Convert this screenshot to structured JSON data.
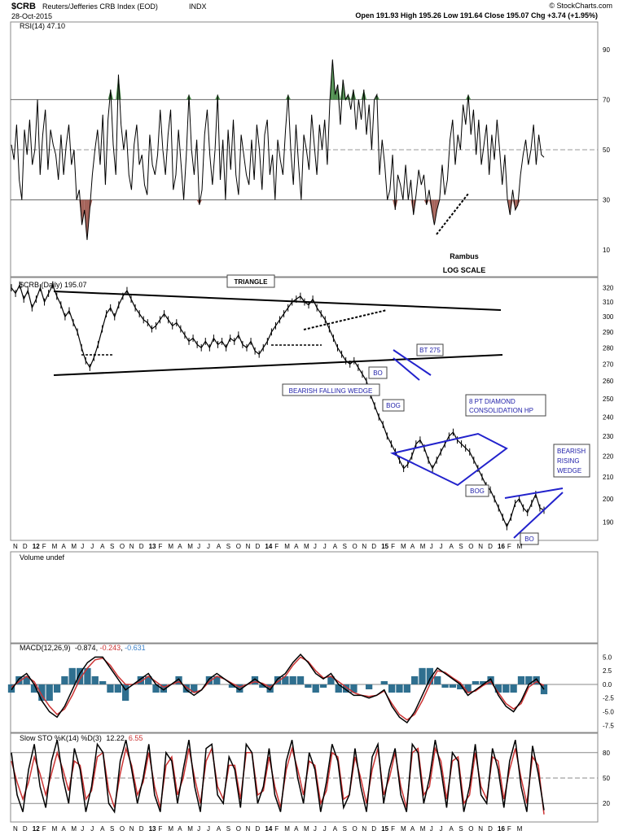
{
  "header": {
    "symbol": "$CRB",
    "name": "Reuters/Jefferies CRB Index (EOD)",
    "exchange": "INDX",
    "date": "28-Oct-2015",
    "ohlc": "Open 191.93  High 195.26  Low 191.64  Close 195.07  Chg +3.74 (+1.95%)",
    "copyright": "© StockCharts.com"
  },
  "chart_data": [
    {
      "type": "line",
      "title": "RSI(14) 47.10",
      "ylim": [
        0,
        100
      ],
      "yticks": [
        10,
        30,
        50,
        70,
        90
      ],
      "reference_lines": [
        30,
        50,
        70
      ],
      "annotations": [
        "Rambus",
        "LOG SCALE"
      ],
      "series": [
        {
          "values": [
            52,
            46,
            60,
            38,
            30,
            58,
            48,
            62,
            44,
            50,
            70,
            40,
            56,
            66,
            42,
            58,
            52,
            48,
            38,
            56,
            40,
            52,
            60,
            44,
            50,
            30,
            34,
            20,
            26,
            14,
            26,
            40,
            50,
            58,
            44,
            64,
            36,
            62,
            74,
            52,
            40,
            80,
            60,
            50,
            58,
            40,
            34,
            52,
            60,
            44,
            48,
            36,
            32,
            56,
            44,
            40,
            48,
            66,
            50,
            40,
            56,
            66,
            34,
            40,
            58,
            44,
            30,
            48,
            72,
            50,
            40,
            54,
            28,
            34,
            56,
            66,
            48,
            36,
            50,
            72,
            38,
            54,
            30,
            58,
            42,
            62,
            40,
            32,
            56,
            48,
            40,
            36,
            54,
            38,
            60,
            50,
            34,
            56,
            62,
            40,
            48,
            30,
            54,
            46,
            40,
            58,
            72,
            50,
            36,
            60,
            44,
            30,
            56,
            50,
            42,
            64,
            52,
            40,
            60,
            50,
            62,
            44,
            70,
            86,
            72,
            76,
            60,
            78,
            70,
            72,
            66,
            74,
            58,
            70,
            62,
            74,
            56,
            68,
            50,
            70,
            72,
            40,
            54,
            44,
            30,
            34,
            48,
            26,
            40,
            36,
            30,
            44,
            30,
            38,
            24,
            32,
            42,
            36,
            40,
            28,
            34,
            26,
            20,
            26,
            30,
            44,
            32,
            38,
            54,
            62,
            44,
            56,
            50,
            68,
            60,
            72,
            56,
            66,
            48,
            62,
            44,
            52,
            60,
            40,
            56,
            46,
            62,
            50,
            36,
            48,
            30,
            24,
            34,
            26,
            28,
            40,
            48,
            54,
            44,
            50,
            60,
            44,
            56,
            48,
            47
          ]
        }
      ]
    },
    {
      "type": "line",
      "title": "$CRB (Daily) 195.07",
      "scale": "log",
      "ylim": [
        183,
        325
      ],
      "yticks": [
        190,
        200,
        210,
        220,
        230,
        240,
        250,
        260,
        270,
        280,
        290,
        300,
        310,
        320
      ],
      "xticks": [
        "N",
        "D",
        "12",
        "F",
        "M",
        "A",
        "M",
        "J",
        "J",
        "A",
        "S",
        "O",
        "N",
        "D",
        "13",
        "F",
        "M",
        "A",
        "M",
        "J",
        "J",
        "A",
        "S",
        "O",
        "N",
        "D",
        "14",
        "F",
        "M",
        "A",
        "M",
        "J",
        "J",
        "A",
        "S",
        "O",
        "N",
        "D",
        "15",
        "F",
        "M",
        "A",
        "M",
        "J",
        "J",
        "A",
        "S",
        "O",
        "N",
        "D",
        "16",
        "F",
        "M"
      ],
      "annotations": [
        "TRIANGLE",
        "BT 275",
        "BO",
        "BEARISH FALLING WEDGE",
        "BOG",
        "8 PT DIAMOND",
        "CONSOLIDATION HP",
        "BOG",
        "BEARISH",
        "RISING",
        "WEDGE",
        "BO"
      ],
      "series": [
        {
          "values": [
            320,
            316,
            322,
            312,
            318,
            306,
            312,
            320,
            310,
            316,
            322,
            314,
            308,
            300,
            304,
            296,
            290,
            280,
            272,
            268,
            274,
            282,
            292,
            302,
            306,
            300,
            308,
            314,
            318,
            312,
            306,
            302,
            298,
            296,
            292,
            294,
            298,
            302,
            298,
            294,
            296,
            292,
            288,
            284,
            286,
            282,
            280,
            284,
            280,
            286,
            282,
            284,
            280,
            286,
            284,
            288,
            282,
            280,
            284,
            278,
            276,
            280,
            284,
            290,
            294,
            298,
            302,
            306,
            310,
            312,
            314,
            310,
            308,
            312,
            306,
            302,
            298,
            292,
            286,
            280,
            276,
            272,
            270,
            272,
            268,
            264,
            260,
            252,
            246,
            240,
            236,
            230,
            226,
            222,
            218,
            214,
            216,
            220,
            226,
            228,
            224,
            218,
            214,
            218,
            222,
            226,
            230,
            232,
            228,
            226,
            224,
            222,
            218,
            214,
            210,
            206,
            204,
            200,
            196,
            192,
            188,
            192,
            198,
            200,
            196,
            194,
            198,
            202,
            196,
            195
          ]
        }
      ]
    },
    {
      "type": "bar",
      "title": "Volume undef",
      "series": []
    },
    {
      "type": "line",
      "title": "MACD(12,26,9)",
      "ylim": [
        -8.5,
        7
      ],
      "yticks": [
        -7.5,
        -5.0,
        -2.5,
        0.0,
        2.5,
        5.0
      ],
      "legend": [
        {
          "label": "-0.874",
          "color": "#000000"
        },
        {
          "label": "-0.243",
          "color": "#cc3333"
        },
        {
          "label": "-0.631",
          "color": "#3a80c8"
        }
      ],
      "series": [
        {
          "values": [
            -1,
            1,
            2,
            0,
            -3,
            -5,
            -6,
            -4,
            -1,
            2,
            4,
            5,
            5,
            3,
            1,
            -1,
            0,
            1,
            2,
            0,
            -1,
            0,
            1,
            -1,
            -2,
            -1,
            1,
            2,
            1,
            0,
            -1,
            0,
            1,
            0,
            -1,
            1,
            2,
            4,
            5.5,
            4,
            2,
            1,
            2,
            0,
            -1,
            -2,
            -2,
            -2.5,
            -2,
            -1,
            -4,
            -6,
            -7,
            -5,
            -2,
            1,
            3,
            2,
            1,
            0,
            -2,
            -1,
            0,
            1,
            -2,
            -4,
            -5,
            -3,
            0,
            1,
            -0.9
          ]
        },
        {
          "values": [
            -0.5,
            0.5,
            1.5,
            0.5,
            -2,
            -4,
            -5.5,
            -4.5,
            -2,
            1,
            3,
            4.5,
            4.8,
            3.5,
            1.5,
            0,
            0,
            0.5,
            1.5,
            0.5,
            -0.5,
            0,
            0.5,
            -0.5,
            -1.5,
            -1,
            0.5,
            1.5,
            1,
            0.2,
            -0.5,
            0,
            0.5,
            0.2,
            -0.5,
            0.5,
            1.5,
            3.5,
            5,
            4.2,
            2.5,
            1.2,
            1.5,
            0.5,
            -0.5,
            -1.5,
            -2,
            -2.2,
            -2,
            -1.2,
            -3.5,
            -5.5,
            -6.5,
            -5.5,
            -3,
            0,
            2.5,
            2.2,
            1.2,
            0.3,
            -1.5,
            -1.2,
            -0.2,
            0.5,
            -1.5,
            -3.5,
            -4.5,
            -3.5,
            -0.5,
            0.5,
            -0.2
          ]
        },
        {
          "values": [
            -0.5,
            0.5,
            0.5,
            -0.5,
            -1,
            -1,
            -0.5,
            0.5,
            1,
            1,
            1,
            0.5,
            0.2,
            -0.5,
            -0.5,
            -1,
            0,
            0.5,
            0.5,
            -0.5,
            -0.5,
            0,
            0.5,
            -0.5,
            -0.5,
            0,
            0.5,
            0.5,
            0,
            -0.2,
            -0.5,
            0,
            0.5,
            -0.2,
            -0.5,
            0.5,
            0.5,
            0.5,
            0.5,
            -0.2,
            -0.5,
            -0.2,
            0.5,
            -0.5,
            -0.5,
            -0.5,
            0,
            -0.3,
            0,
            0.2,
            -0.5,
            -0.5,
            -0.5,
            0.5,
            1,
            1,
            0.5,
            -0.2,
            -0.2,
            -0.3,
            -0.5,
            0.2,
            0.2,
            0.5,
            -0.5,
            -0.5,
            -0.5,
            0.5,
            0.5,
            0.5,
            -0.6
          ]
        }
      ]
    },
    {
      "type": "line",
      "title": "Slow STO %K(14) %D(3)",
      "ylim": [
        0,
        100
      ],
      "yticks": [
        20,
        50,
        80
      ],
      "reference_lines": [
        20,
        50,
        80
      ],
      "legend": [
        {
          "label": "12.22",
          "color": "#000000"
        },
        {
          "label": "6.55",
          "color": "#cc3333"
        }
      ],
      "series": [
        {
          "values": [
            80,
            30,
            10,
            60,
            90,
            40,
            15,
            70,
            95,
            50,
            20,
            85,
            60,
            10,
            40,
            90,
            80,
            20,
            10,
            70,
            95,
            60,
            20,
            50,
            90,
            30,
            10,
            80,
            70,
            20,
            60,
            95,
            40,
            10,
            85,
            90,
            30,
            20,
            75,
            60,
            15,
            90,
            80,
            20,
            40,
            85,
            30,
            10,
            70,
            95,
            50,
            20,
            80,
            60,
            10,
            45,
            90,
            70,
            15,
            30,
            85,
            40,
            10,
            75,
            90,
            20,
            60,
            85,
            30,
            10,
            90,
            80,
            20,
            50,
            95,
            60,
            15,
            80,
            70,
            10,
            40,
            90,
            30,
            20,
            85,
            60,
            15,
            70,
            95,
            40,
            10,
            88,
            55,
            12
          ]
        },
        {
          "values": [
            70,
            45,
            25,
            45,
            75,
            55,
            30,
            55,
            80,
            60,
            35,
            70,
            65,
            25,
            35,
            75,
            80,
            35,
            15,
            55,
            85,
            65,
            30,
            45,
            80,
            40,
            15,
            65,
            75,
            30,
            50,
            85,
            50,
            20,
            70,
            85,
            40,
            25,
            65,
            65,
            25,
            80,
            80,
            30,
            35,
            75,
            40,
            15,
            60,
            85,
            60,
            30,
            70,
            65,
            20,
            35,
            80,
            75,
            25,
            30,
            75,
            50,
            20,
            60,
            85,
            30,
            50,
            80,
            40,
            15,
            80,
            85,
            30,
            40,
            85,
            70,
            25,
            70,
            75,
            20,
            30,
            80,
            40,
            25,
            75,
            70,
            25,
            60,
            85,
            50,
            20,
            75,
            65,
            7
          ]
        }
      ]
    }
  ]
}
